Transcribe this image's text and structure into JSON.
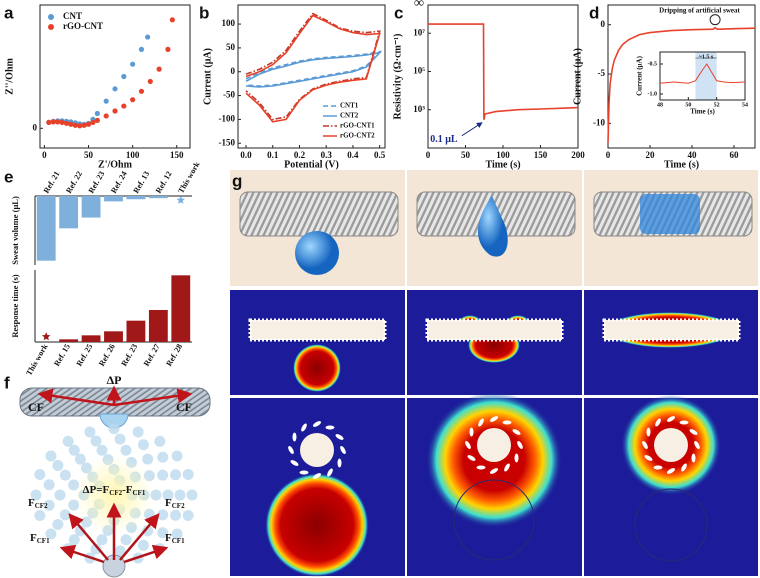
{
  "panel_labels": [
    "a",
    "b",
    "c",
    "d",
    "e",
    "f",
    "g"
  ],
  "fig_f": {
    "delta_p": "ΔP",
    "cf_left": "CF",
    "cf_right": "CF",
    "equation": [
      "ΔP=F",
      "CF2",
      "-F",
      "CF1"
    ],
    "forces": [
      {
        "main": "F",
        "sub": "CF2"
      },
      {
        "main": "F",
        "sub": "CF2"
      },
      {
        "main": "F",
        "sub": "CF1"
      },
      {
        "main": "F",
        "sub": "CF1"
      }
    ]
  },
  "chart_data": [
    {
      "type": "scatter",
      "xlabel": "Z'/Ohm",
      "ylabel": "Z''/Ohm",
      "xlim": [
        -5,
        165
      ],
      "ylim": [
        -40,
        250
      ],
      "xticks": [
        0,
        50,
        100,
        150
      ],
      "yticks": [
        0
      ],
      "legend": "upper left",
      "series": [
        {
          "name": "CNT",
          "color": "#5b9bd5",
          "x": [
            5,
            10,
            15,
            20,
            25,
            30,
            35,
            40,
            45,
            50,
            55,
            60,
            70,
            80,
            90,
            100,
            110,
            117
          ],
          "values": [
            12,
            14,
            15,
            15,
            14,
            13,
            11,
            9,
            8,
            10,
            18,
            30,
            55,
            80,
            105,
            130,
            160,
            185
          ]
        },
        {
          "name": "rGO-CNT",
          "color": "#e8412b",
          "x": [
            5,
            10,
            15,
            20,
            25,
            30,
            35,
            40,
            45,
            50,
            55,
            60,
            70,
            80,
            90,
            100,
            110,
            120,
            130,
            140,
            145
          ],
          "values": [
            12,
            13,
            13,
            12,
            10,
            8,
            6,
            5,
            6,
            8,
            12,
            16,
            25,
            35,
            45,
            58,
            75,
            95,
            120,
            160,
            220
          ]
        }
      ]
    },
    {
      "type": "line",
      "xlabel": "Potential (V)",
      "ylabel": "Current (μA)",
      "xlim": [
        -0.03,
        0.52
      ],
      "ylim": [
        -160,
        140
      ],
      "xticks": [
        {
          "value": 0,
          "label": "0.0"
        },
        {
          "value": 0.1,
          "label": "0.1"
        },
        {
          "value": 0.2,
          "label": "0.2"
        },
        {
          "value": 0.3,
          "label": "0.3"
        },
        {
          "value": 0.4,
          "label": "0.4"
        },
        {
          "value": 0.5,
          "label": "0.5"
        }
      ],
      "yticks": [
        -150,
        -100,
        -50,
        0,
        50,
        100
      ],
      "legend": "lower right",
      "x": [
        0,
        0.05,
        0.1,
        0.15,
        0.2,
        0.25,
        0.3,
        0.35,
        0.4,
        0.45,
        0.5,
        0.45,
        0.4,
        0.35,
        0.3,
        0.25,
        0.2,
        0.15,
        0.1,
        0.05,
        0
      ],
      "series": [
        {
          "name": "CNT1",
          "color": "#5b9bd5",
          "dash": "dash",
          "values": [
            -15,
            -2,
            8,
            15,
            22,
            27,
            30,
            32,
            34,
            37,
            42,
            12,
            2,
            -3,
            -8,
            -13,
            -18,
            -23,
            -28,
            -30,
            -28
          ]
        },
        {
          "name": "CNT2",
          "color": "#5b9bd5",
          "dash": "solid",
          "values": [
            -20,
            -5,
            5,
            12,
            20,
            25,
            28,
            30,
            32,
            35,
            40,
            10,
            0,
            -5,
            -10,
            -15,
            -20,
            -25,
            -30,
            -32,
            -30
          ]
        },
        {
          "name": "rGO-CNT1",
          "color": "#c0392b",
          "dash": "dashdot",
          "values": [
            -5,
            5,
            20,
            45,
            85,
            122,
            108,
            92,
            85,
            82,
            85,
            -12,
            -15,
            -20,
            -26,
            -36,
            -58,
            -95,
            -100,
            -65,
            -40
          ]
        },
        {
          "name": "rGO-CNT2",
          "color": "#e8412b",
          "dash": "solid",
          "values": [
            -10,
            0,
            15,
            40,
            80,
            118,
            105,
            90,
            82,
            78,
            80,
            -15,
            -18,
            -22,
            -28,
            -38,
            -60,
            -100,
            -105,
            -70,
            -45
          ]
        }
      ]
    },
    {
      "type": "line",
      "xlabel": "Time (s)",
      "ylabel": "Resistivity (Ω·cm⁻¹)",
      "ylog": true,
      "xlim": [
        0,
        200
      ],
      "ylim": [
        10,
        300000000
      ],
      "xticks": [
        0,
        50,
        100,
        150,
        200
      ],
      "yticks": [
        {
          "value": 1000,
          "label": "10³"
        },
        {
          "value": 100000,
          "label": "10⁵"
        },
        {
          "value": 10000000,
          "label": "10⁷"
        }
      ],
      "top_label": "∞",
      "annotation": "0.1 μL",
      "x": [
        0,
        74,
        74.5,
        76,
        90,
        120,
        150,
        180,
        200
      ],
      "series": [
        {
          "color": "#e8412b",
          "dash": "solid",
          "values": [
            30000000,
            30000000,
            300,
            600,
            800,
            1000,
            1100,
            1200,
            1300
          ]
        }
      ]
    },
    {
      "type": "line",
      "xlabel": "Time (s)",
      "ylabel": "Current (μA)",
      "xlim": [
        0,
        70
      ],
      "ylim": [
        -12.5,
        2
      ],
      "xticks": [
        0,
        20,
        40,
        60
      ],
      "yticks": [
        -10,
        -5,
        0
      ],
      "annotation": "Dripping of artificial sweat",
      "x": [
        0,
        0.5,
        1,
        2,
        3,
        5,
        7,
        10,
        15,
        20,
        30,
        40,
        50,
        51,
        52,
        53,
        60,
        70
      ],
      "series": [
        {
          "color": "#e8412b",
          "dash": "solid",
          "values": [
            -12,
            -8,
            -6,
            -4.5,
            -3.6,
            -2.6,
            -2,
            -1.5,
            -1,
            -0.8,
            -0.6,
            -0.5,
            -0.45,
            -0.3,
            -0.45,
            -0.45,
            -0.4,
            -0.35
          ]
        }
      ]
    },
    {
      "type": "line",
      "xlabel": "Time (s)",
      "ylabel": "Current (μA)",
      "xlim": [
        48,
        54
      ],
      "ylim": [
        -1.1,
        -0.3
      ],
      "xticks": [
        48,
        50,
        52,
        54
      ],
      "yticks": [
        {
          "value": -1,
          "label": "-1.0"
        },
        {
          "value": -0.5,
          "label": "-0.5"
        }
      ],
      "shade": [
        50.5,
        52
      ],
      "annotation": "~1.5 s",
      "x": [
        48,
        49,
        50,
        50.5,
        51,
        51.3,
        51.6,
        52,
        52.5,
        53,
        54
      ],
      "series": [
        {
          "color": "#e8412b",
          "dash": "solid",
          "values": [
            -0.82,
            -0.8,
            -0.82,
            -0.78,
            -0.6,
            -0.5,
            -0.62,
            -0.78,
            -0.8,
            -0.81,
            -0.8
          ]
        }
      ]
    },
    {
      "type": "bar",
      "ylabel": "Sweat volume (μL)",
      "y_inverted": true,
      "ylim": [
        0,
        32
      ],
      "color": "#7fb0dc",
      "categories": [
        "Ref. 21",
        "Ref. 22",
        "Ref. 23",
        "Ref. 24",
        "Ref. 13",
        "Ref. 12",
        "This work"
      ],
      "values": [
        30,
        15,
        10,
        2.5,
        1.5,
        1,
        0.1
      ],
      "marker_styles": [
        "bar",
        "bar",
        "bar",
        "bar",
        "bar",
        "bar",
        "star"
      ]
    },
    {
      "type": "bar",
      "ylabel": "Response time (s)",
      "ylim": [
        0,
        27
      ],
      "color": "#a01818",
      "categories": [
        "This work",
        "Ref. 15",
        "Ref. 25",
        "Ref. 26",
        "Ref. 23",
        "Ref. 27",
        "Ref. 28"
      ],
      "values": [
        0.5,
        1,
        2.5,
        4,
        8,
        12,
        25
      ],
      "marker_styles": [
        "star",
        "bar",
        "bar",
        "bar",
        "bar",
        "bar",
        "bar"
      ]
    }
  ]
}
